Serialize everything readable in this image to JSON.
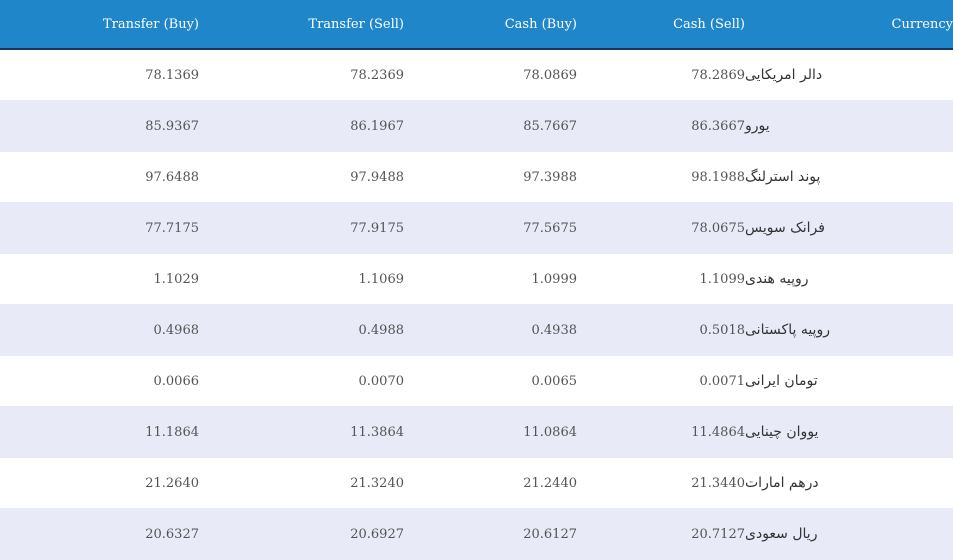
{
  "table": {
    "headers": {
      "transfer_buy": "Transfer (Buy)",
      "transfer_sell": "Transfer (Sell)",
      "cash_buy": "Cash (Buy)",
      "cash_sell": "Cash (Sell)",
      "currency": "Currency"
    },
    "rows": [
      {
        "transfer_buy": "78.1369",
        "transfer_sell": "78.2369",
        "cash_buy": "78.0869",
        "cash_sell": "78.2869",
        "currency": "دالر امریکایی"
      },
      {
        "transfer_buy": "85.9367",
        "transfer_sell": "86.1967",
        "cash_buy": "85.7667",
        "cash_sell": "86.3667",
        "currency": "یورو"
      },
      {
        "transfer_buy": "97.6488",
        "transfer_sell": "97.9488",
        "cash_buy": "97.3988",
        "cash_sell": "98.1988",
        "currency": "پوند استرلنگ"
      },
      {
        "transfer_buy": "77.7175",
        "transfer_sell": "77.9175",
        "cash_buy": "77.5675",
        "cash_sell": "78.0675",
        "currency": "فرانک سویس"
      },
      {
        "transfer_buy": "1.1029",
        "transfer_sell": "1.1069",
        "cash_buy": "1.0999",
        "cash_sell": "1.1099",
        "currency": "روپیه هندی"
      },
      {
        "transfer_buy": "0.4968",
        "transfer_sell": "0.4988",
        "cash_buy": "0.4938",
        "cash_sell": "0.5018",
        "currency": "روپیه پاکستانی"
      },
      {
        "transfer_buy": "0.0066",
        "transfer_sell": "0.0070",
        "cash_buy": "0.0065",
        "cash_sell": "0.0071",
        "currency": "تومان ایرانی"
      },
      {
        "transfer_buy": "11.1864",
        "transfer_sell": "11.3864",
        "cash_buy": "11.0864",
        "cash_sell": "11.4864",
        "currency": "یووان چینایی"
      },
      {
        "transfer_buy": "21.2640",
        "transfer_sell": "21.3240",
        "cash_buy": "21.2440",
        "cash_sell": "21.3440",
        "currency": "درهم امارات"
      },
      {
        "transfer_buy": "20.6327",
        "transfer_sell": "20.6927",
        "cash_buy": "20.6127",
        "cash_sell": "20.7127",
        "currency": "ریال سعودی"
      }
    ]
  },
  "colors": {
    "header_bg": "#1f87c9",
    "header_border": "#16385a",
    "row_alt_bg": "#e8eaf8",
    "text": "#545454"
  }
}
